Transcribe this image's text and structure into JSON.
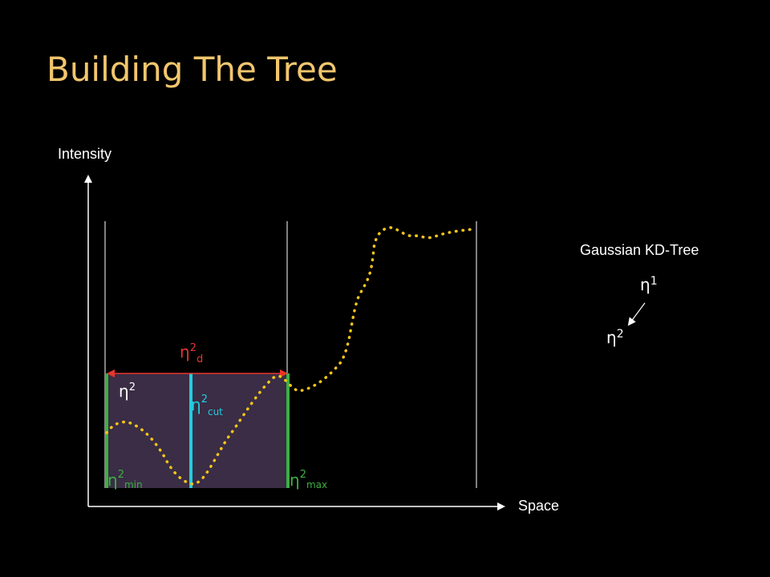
{
  "title": "Building The Tree",
  "axes": {
    "y_label": "Intensity",
    "x_label": "Space"
  },
  "labels": {
    "eta_d": {
      "base": "η",
      "sup": "2",
      "sub": "d"
    },
    "eta_node": {
      "base": "η",
      "sup": "2"
    },
    "eta_cut": {
      "base": "η",
      "sup": "2",
      "sub": "cut"
    },
    "eta_min": {
      "base": "η",
      "sup": "2",
      "sub": "min"
    },
    "eta_max": {
      "base": "η",
      "sup": "2",
      "sub": "max"
    }
  },
  "tree": {
    "title": "Gaussian KD-Tree",
    "root": {
      "base": "η",
      "sup": "1"
    },
    "child": {
      "base": "η",
      "sup": "2"
    }
  },
  "colors": {
    "title": "#F2C66D",
    "region_fill": "#3A2D45",
    "bounds": "#3CB043",
    "cut": "#22CCDD",
    "range_arrow": "#E8352E",
    "signal": "#F5C518",
    "axis": "#FFFFFF"
  }
}
